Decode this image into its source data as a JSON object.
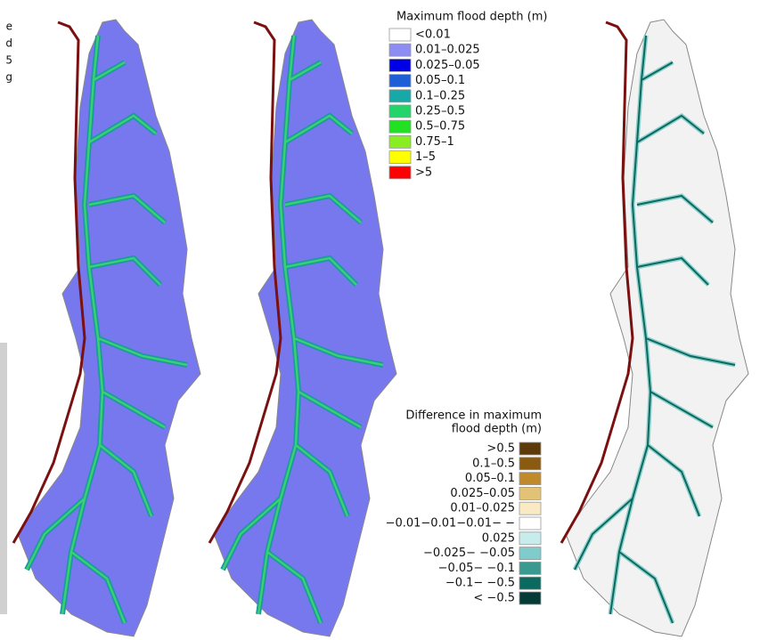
{
  "edge_fragments": [
    "e",
    "d",
    "5",
    "g"
  ],
  "depth_legend": {
    "title": "Maximum flood depth (m)",
    "items": [
      {
        "label": "<0.01",
        "color": "#ffffff"
      },
      {
        "label": "0.01–0.025",
        "color": "#8c8cf2"
      },
      {
        "label": "0.025–0.05",
        "color": "#0000e6"
      },
      {
        "label": "0.05–0.1",
        "color": "#1f5fd6"
      },
      {
        "label": "0.1–0.25",
        "color": "#17a8a8"
      },
      {
        "label": "0.25–0.5",
        "color": "#22d46a"
      },
      {
        "label": "0.5–0.75",
        "color": "#22e022"
      },
      {
        "label": "0.75–1",
        "color": "#88ee22"
      },
      {
        "label": "1–5",
        "color": "#ffff00"
      },
      {
        "label": ">5",
        "color": "#ff0000"
      }
    ]
  },
  "difference_legend": {
    "title_lines": [
      "Difference in maximum",
      "flood depth (m)"
    ],
    "items": [
      {
        "label": ">0.5",
        "color": "#5c3a0a"
      },
      {
        "label": "0.1–0.5",
        "color": "#8a5a10"
      },
      {
        "label": "0.05–0.1",
        "color": "#c08a2a"
      },
      {
        "label": "0.025–0.05",
        "color": "#e2c274"
      },
      {
        "label": "0.01–0.025",
        "color": "#faeac4"
      },
      {
        "label": "−0.01−0.01−0.01− −",
        "color": "#ffffff"
      },
      {
        "label": "0.025",
        "color": "#c8ecec"
      },
      {
        "label": "−0.025− −0.05",
        "color": "#80cccc"
      },
      {
        "label": "−0.05− −0.1",
        "color": "#3a9a90"
      },
      {
        "label": "−0.1− −0.5",
        "color": "#0a6a60"
      },
      {
        "label": "< −0.5",
        "color": "#053a36"
      }
    ]
  }
}
